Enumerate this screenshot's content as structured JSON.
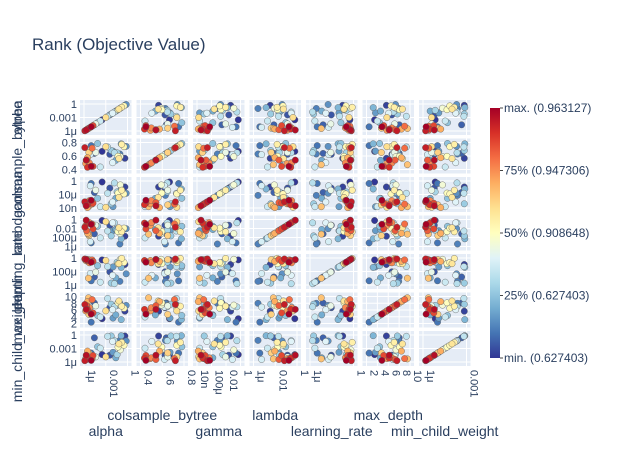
{
  "chart_data": {
    "type": "scatter",
    "title": "Rank (Objective Value)",
    "params": [
      "alpha",
      "colsample_bytree",
      "gamma",
      "lambda",
      "learning_rate",
      "max_depth",
      "min_child_weight"
    ],
    "row_tick_labels": [
      [
        "1",
        "0.001",
        "1μ"
      ],
      [
        "0.8",
        "0.6",
        "0.4"
      ],
      [
        "1",
        "10μ",
        "10n"
      ],
      [
        "1",
        "0.01",
        "100μ",
        "1μ"
      ],
      [
        "1",
        "100μ",
        "1μ"
      ],
      [
        "10",
        "8",
        "6",
        "4",
        "2"
      ],
      [
        "1",
        "0.001",
        "1μ"
      ]
    ],
    "col_tick_labels": [
      [
        "1μ",
        "0.001",
        "1"
      ],
      [
        "0.4",
        "0.6",
        "0.8"
      ],
      [
        "10n",
        "100μ",
        "0.01",
        "1"
      ],
      [
        "1μ",
        "0.01",
        "1"
      ],
      [
        "1μ",
        "1"
      ],
      [
        "2",
        "4",
        "6",
        "8",
        "10"
      ],
      [
        "1μ",
        "0.001"
      ]
    ],
    "colorbar": {
      "labels": [
        "max. (0.963127)",
        "75% (0.947306)",
        "50% (0.908648)",
        "25% (0.627403)",
        "min. (0.627403)"
      ],
      "colors": [
        "#313695",
        "#4575b4",
        "#74add1",
        "#abd9e9",
        "#e0f3f8",
        "#ffffbf",
        "#fee090",
        "#fdae61",
        "#f46d43",
        "#d73027",
        "#a50026"
      ]
    },
    "trials": [
      {
        "alpha": 0.42,
        "colsample_bytree": 0.66,
        "gamma": 0.93,
        "lambda": 0.93,
        "learning_rate": 0.9,
        "max_depth": 0.2,
        "min_child_weight": 0.29,
        "rank": 0.0
      },
      {
        "alpha": 0.92,
        "colsample_bytree": 0.42,
        "gamma": 0.76,
        "lambda": 0.39,
        "learning_rate": 0.74,
        "max_depth": 0.46,
        "min_child_weight": 0.93,
        "rank": 0.02
      },
      {
        "alpha": 0.59,
        "colsample_bytree": 0.56,
        "gamma": 0.72,
        "lambda": 0.77,
        "learning_rate": 0.49,
        "max_depth": 0.58,
        "min_child_weight": 0.27,
        "rank": 0.05
      },
      {
        "alpha": 0.25,
        "colsample_bytree": 0.59,
        "gamma": 0.57,
        "lambda": 0.47,
        "learning_rate": 0.31,
        "max_depth": 0.74,
        "min_child_weight": 0.87,
        "rank": 0.07
      },
      {
        "alpha": 0.18,
        "colsample_bytree": 0.86,
        "gamma": 0.88,
        "lambda": 0.16,
        "learning_rate": 0.18,
        "max_depth": 0.08,
        "min_child_weight": 0.34,
        "rank": 0.1
      },
      {
        "alpha": 0.81,
        "colsample_bytree": 0.57,
        "gamma": 0.47,
        "lambda": 0.12,
        "learning_rate": 0.16,
        "max_depth": 0.73,
        "min_child_weight": 0.78,
        "rank": 0.12
      },
      {
        "alpha": 0.95,
        "colsample_bytree": 0.83,
        "gamma": 0.54,
        "lambda": 0.65,
        "learning_rate": 0.42,
        "max_depth": 0.66,
        "min_child_weight": 0.76,
        "rank": 0.15
      },
      {
        "alpha": 0.66,
        "colsample_bytree": 0.67,
        "gamma": 0.08,
        "lambda": 0.58,
        "learning_rate": 0.66,
        "max_depth": 0.22,
        "min_child_weight": 0.37,
        "rank": 0.17
      },
      {
        "alpha": 0.72,
        "colsample_bytree": 0.35,
        "gamma": 0.37,
        "lambda": 0.62,
        "learning_rate": 0.28,
        "max_depth": 0.33,
        "min_child_weight": 0.18,
        "rank": 0.2
      },
      {
        "alpha": 0.84,
        "colsample_bytree": 0.92,
        "gamma": 0.69,
        "lambda": 0.3,
        "learning_rate": 0.64,
        "max_depth": 0.17,
        "min_child_weight": 0.94,
        "rank": 0.22
      },
      {
        "alpha": 0.32,
        "colsample_bytree": 0.93,
        "gamma": 0.37,
        "lambda": 0.73,
        "learning_rate": 0.7,
        "max_depth": 0.31,
        "min_child_weight": 0.56,
        "rank": 0.25
      },
      {
        "alpha": 0.62,
        "colsample_bytree": 0.69,
        "gamma": 0.18,
        "lambda": 0.4,
        "learning_rate": 0.1,
        "max_depth": 0.7,
        "min_child_weight": 0.93,
        "rank": 0.27
      },
      {
        "alpha": 0.75,
        "colsample_bytree": 0.61,
        "gamma": 0.59,
        "lambda": 0.59,
        "learning_rate": 0.82,
        "max_depth": 0.66,
        "min_child_weight": 0.29,
        "rank": 0.29
      },
      {
        "alpha": 0.69,
        "colsample_bytree": 0.61,
        "gamma": 0.9,
        "lambda": 0.85,
        "learning_rate": 0.08,
        "max_depth": 0.61,
        "min_child_weight": 0.77,
        "rank": 0.32
      },
      {
        "alpha": 0.54,
        "colsample_bytree": 0.81,
        "gamma": 0.54,
        "lambda": 0.57,
        "learning_rate": 0.67,
        "max_depth": 0.9,
        "min_child_weight": 0.92,
        "rank": 0.34
      },
      {
        "alpha": 0.38,
        "colsample_bytree": 0.12,
        "gamma": 0.08,
        "lambda": 0.33,
        "learning_rate": 0.13,
        "max_depth": 0.26,
        "min_child_weight": 0.51,
        "rank": 0.36
      },
      {
        "alpha": 0.16,
        "colsample_bytree": 0.55,
        "gamma": 0.8,
        "lambda": 0.2,
        "learning_rate": 0.43,
        "max_depth": 0.6,
        "min_child_weight": 0.12,
        "rank": 0.38
      },
      {
        "alpha": 0.65,
        "colsample_bytree": 0.27,
        "gamma": 0.24,
        "lambda": 0.85,
        "learning_rate": 0.37,
        "max_depth": 0.51,
        "min_child_weight": 0.74,
        "rank": 0.4
      },
      {
        "alpha": 0.28,
        "colsample_bytree": 0.62,
        "gamma": 0.65,
        "lambda": 0.77,
        "learning_rate": 0.48,
        "max_depth": 0.64,
        "min_child_weight": 0.21,
        "rank": 0.43
      },
      {
        "alpha": 0.82,
        "colsample_bytree": 0.48,
        "gamma": 0.83,
        "lambda": 0.48,
        "learning_rate": 0.92,
        "max_depth": 0.67,
        "min_child_weight": 0.45,
        "rank": 0.46
      },
      {
        "alpha": 0.77,
        "colsample_bytree": 0.49,
        "gamma": 0.55,
        "lambda": 0.55,
        "learning_rate": 0.77,
        "max_depth": 0.75,
        "min_child_weight": 0.55,
        "rank": 0.5
      },
      {
        "alpha": 0.9,
        "colsample_bytree": 0.82,
        "gamma": 0.52,
        "lambda": 0.67,
        "learning_rate": 0.81,
        "max_depth": 0.56,
        "min_child_weight": 0.61,
        "rank": 0.52
      },
      {
        "alpha": 0.85,
        "colsample_bytree": 0.9,
        "gamma": 0.65,
        "lambda": 0.54,
        "learning_rate": 0.95,
        "max_depth": 0.63,
        "min_child_weight": 0.71,
        "rank": 0.55
      },
      {
        "alpha": 0.79,
        "colsample_bytree": 0.41,
        "gamma": 0.4,
        "lambda": 0.68,
        "learning_rate": 0.77,
        "max_depth": 0.81,
        "min_child_weight": 0.66,
        "rank": 0.58
      },
      {
        "alpha": 0.5,
        "colsample_bytree": 0.82,
        "gamma": 0.06,
        "lambda": 0.89,
        "learning_rate": 0.88,
        "max_depth": 0.47,
        "min_child_weight": 0.21,
        "rank": 0.6
      },
      {
        "alpha": 0.13,
        "colsample_bytree": 0.62,
        "gamma": 0.14,
        "lambda": 0.41,
        "learning_rate": 0.91,
        "max_depth": 0.35,
        "min_child_weight": 0.35,
        "rank": 0.63
      },
      {
        "alpha": 0.12,
        "colsample_bytree": 0.2,
        "gamma": 0.08,
        "lambda": 0.46,
        "learning_rate": 0.27,
        "max_depth": 0.92,
        "min_child_weight": 0.14,
        "rank": 0.66
      },
      {
        "alpha": 0.1,
        "colsample_bytree": 0.44,
        "gamma": 0.05,
        "lambda": 0.49,
        "learning_rate": 0.85,
        "max_depth": 0.79,
        "min_child_weight": 0.41,
        "rank": 0.7
      },
      {
        "alpha": 0.06,
        "colsample_bytree": 0.24,
        "gamma": 0.18,
        "lambda": 0.76,
        "learning_rate": 0.88,
        "max_depth": 0.47,
        "min_child_weight": 0.15,
        "rank": 0.73
      },
      {
        "alpha": 0.14,
        "colsample_bytree": 0.26,
        "gamma": 0.29,
        "lambda": 0.86,
        "learning_rate": 0.8,
        "max_depth": 0.58,
        "min_child_weight": 0.18,
        "rank": 0.76
      },
      {
        "alpha": 0.2,
        "colsample_bytree": 0.77,
        "gamma": 0.17,
        "lambda": 0.81,
        "learning_rate": 0.9,
        "max_depth": 0.86,
        "min_child_weight": 0.15,
        "rank": 0.8
      },
      {
        "alpha": 0.08,
        "colsample_bytree": 0.36,
        "gamma": 0.22,
        "lambda": 0.58,
        "learning_rate": 0.92,
        "max_depth": 0.65,
        "min_child_weight": 0.12,
        "rank": 0.83
      },
      {
        "alpha": 0.22,
        "colsample_bytree": 0.14,
        "gamma": 0.2,
        "lambda": 0.64,
        "learning_rate": 0.85,
        "max_depth": 0.4,
        "min_child_weight": 0.26,
        "rank": 0.86
      },
      {
        "alpha": 0.1,
        "colsample_bytree": 0.11,
        "gamma": 0.15,
        "lambda": 0.84,
        "learning_rate": 0.88,
        "max_depth": 0.52,
        "min_child_weight": 0.17,
        "rank": 0.9
      },
      {
        "alpha": 0.04,
        "colsample_bytree": 0.79,
        "gamma": 0.25,
        "lambda": 0.7,
        "learning_rate": 0.93,
        "max_depth": 0.69,
        "min_child_weight": 0.08,
        "rank": 0.94
      },
      {
        "alpha": 0.07,
        "colsample_bytree": 0.36,
        "gamma": 0.11,
        "lambda": 0.94,
        "learning_rate": 0.91,
        "max_depth": 0.52,
        "min_child_weight": 0.27,
        "rank": 0.97
      },
      {
        "alpha": 0.18,
        "colsample_bytree": 0.14,
        "gamma": 0.3,
        "lambda": 0.8,
        "learning_rate": 0.82,
        "max_depth": 0.36,
        "min_child_weight": 0.09,
        "rank": 1.0
      }
    ]
  }
}
